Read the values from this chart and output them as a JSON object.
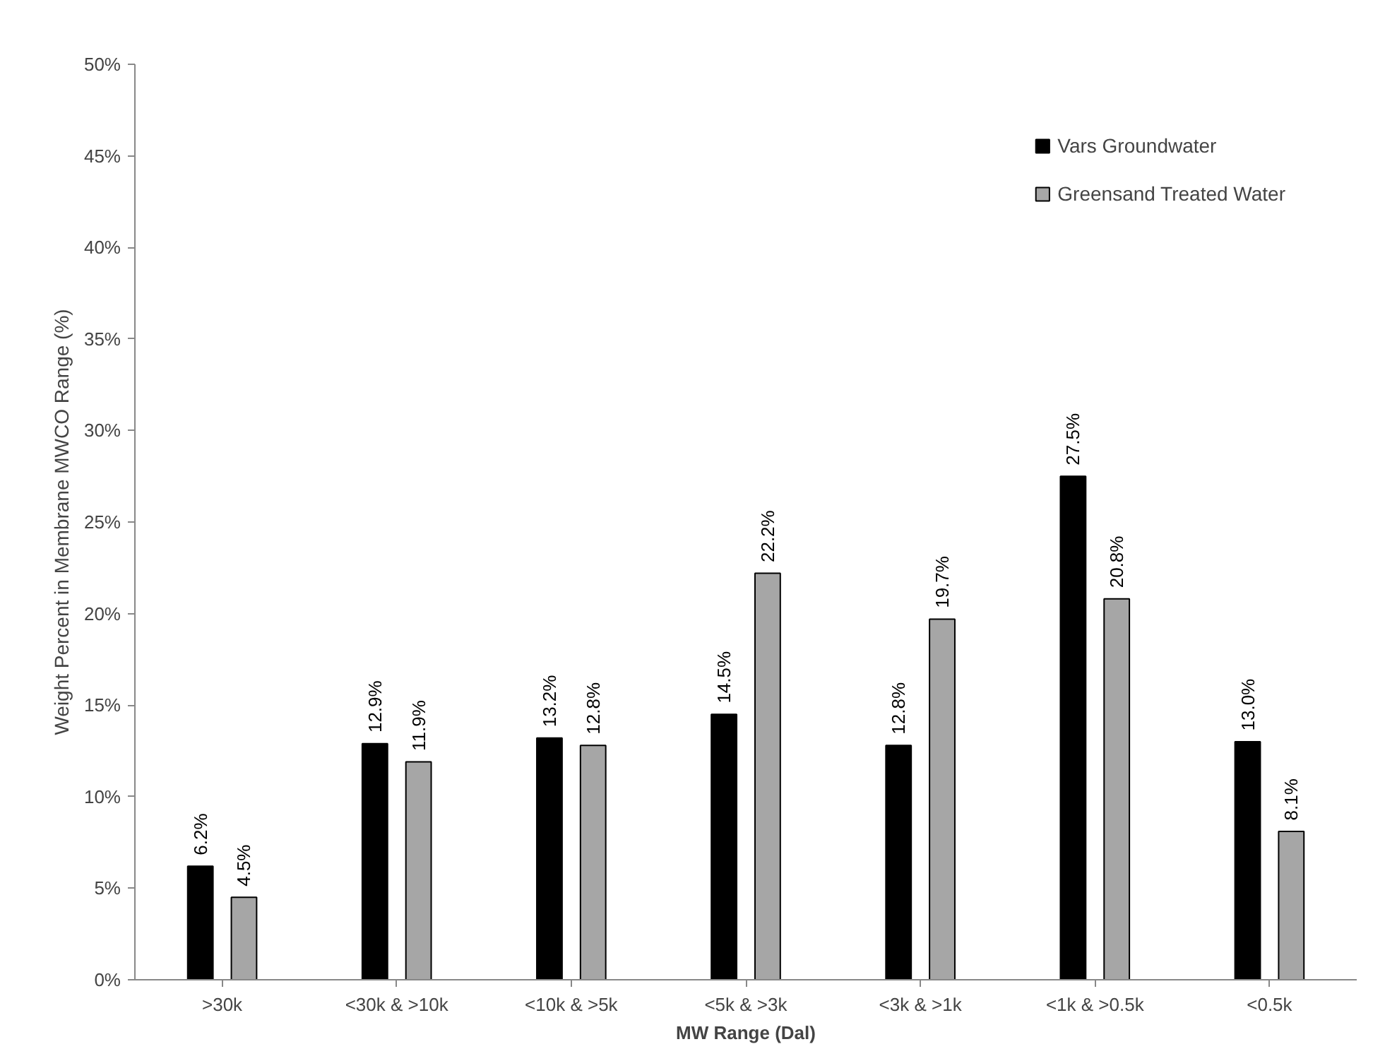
{
  "chart_data": {
    "type": "bar",
    "xlabel": "MW Range (Dal)",
    "ylabel": "Weight Percent in Membrane MWCO Range (%)",
    "categories": [
      ">30k",
      "<30k & >10k",
      "<10k & >5k",
      "<5k & >3k",
      "<3k & >1k",
      "<1k & >0.5k",
      "<0.5k"
    ],
    "series": [
      {
        "name": "Vars Groundwater",
        "color": "#000000",
        "values": [
          6.2,
          12.9,
          13.2,
          14.5,
          12.8,
          27.5,
          13.0
        ],
        "value_labels": [
          "6.2%",
          "12.9%",
          "13.2%",
          "14.5%",
          "12.8%",
          "27.5%",
          "13.0%"
        ]
      },
      {
        "name": "Greensand Treated Water",
        "color": "#a6a6a6",
        "values": [
          4.5,
          11.9,
          12.8,
          22.2,
          19.7,
          20.8,
          8.1
        ],
        "value_labels": [
          "4.5%",
          "11.9%",
          "12.8%",
          "22.2%",
          "19.7%",
          "20.8%",
          "8.1%"
        ]
      }
    ],
    "ylim": [
      0,
      50
    ],
    "yticks": [
      {
        "value": 0,
        "label": "0%"
      },
      {
        "value": 5,
        "label": "5%"
      },
      {
        "value": 10,
        "label": "10%"
      },
      {
        "value": 15,
        "label": "15%"
      },
      {
        "value": 20,
        "label": "20%"
      },
      {
        "value": 25,
        "label": "25%"
      },
      {
        "value": 30,
        "label": "30%"
      },
      {
        "value": 35,
        "label": "35%"
      },
      {
        "value": 40,
        "label": "40%"
      },
      {
        "value": 45,
        "label": "45%"
      },
      {
        "value": 50,
        "label": "50%"
      }
    ],
    "grid": false,
    "legend": "top right"
  }
}
